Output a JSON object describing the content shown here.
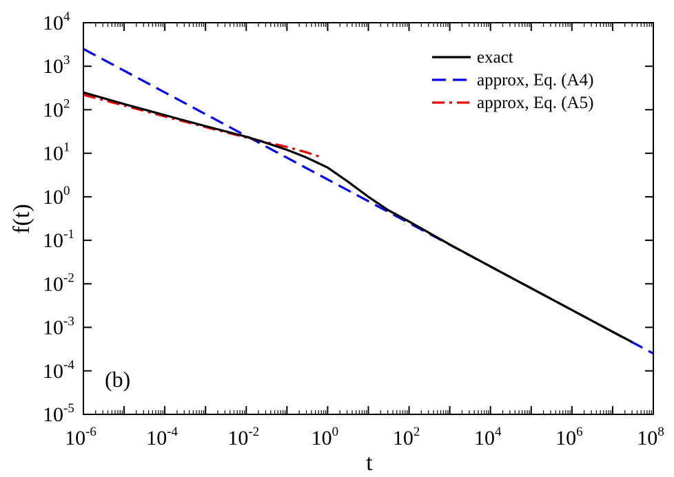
{
  "chart_data": {
    "type": "line",
    "xscale": "log",
    "yscale": "log",
    "xlabel": "t",
    "ylabel": "f(t)",
    "panel_label": "(b)",
    "xlim": [
      1e-06,
      100000000.0
    ],
    "ylim": [
      1e-05,
      10000.0
    ],
    "xticks": [
      {
        "base": "10",
        "exp": "-6"
      },
      {
        "base": "10",
        "exp": "-4"
      },
      {
        "base": "10",
        "exp": "-2"
      },
      {
        "base": "10",
        "exp": "0"
      },
      {
        "base": "10",
        "exp": "2"
      },
      {
        "base": "10",
        "exp": "4"
      },
      {
        "base": "10",
        "exp": "6"
      },
      {
        "base": "10",
        "exp": "8"
      }
    ],
    "yticks": [
      {
        "base": "10",
        "exp": "-5"
      },
      {
        "base": "10",
        "exp": "-4"
      },
      {
        "base": "10",
        "exp": "-3"
      },
      {
        "base": "10",
        "exp": "-2"
      },
      {
        "base": "10",
        "exp": "-1"
      },
      {
        "base": "10",
        "exp": "0"
      },
      {
        "base": "10",
        "exp": "1"
      },
      {
        "base": "10",
        "exp": "2"
      },
      {
        "base": "10",
        "exp": "3"
      },
      {
        "base": "10",
        "exp": "4"
      }
    ],
    "legend_position": "top-right",
    "series": [
      {
        "name": "exact",
        "color": "#000000",
        "style": "solid",
        "x": [
          1e-06,
          1e-05,
          0.0001,
          0.001,
          0.01,
          0.03,
          0.1,
          0.3,
          1,
          3,
          10,
          30,
          100,
          1000.0,
          10000.0,
          100000.0,
          1000000.0,
          10000000.0,
          30000000.0
        ],
        "y": [
          250,
          135,
          75,
          42,
          24,
          17.5,
          12,
          8,
          4.7,
          2.3,
          1.0,
          0.5,
          0.27,
          0.08,
          0.025,
          0.0079,
          0.0025,
          0.00079,
          0.00046
        ]
      },
      {
        "name": "approx, Eq. (A4)",
        "color": "#0000ee",
        "style": "dashed",
        "x": [
          1e-06,
          100000000.0
        ],
        "y": [
          2500,
          0.00025
        ]
      },
      {
        "name": "approx, Eq. (A5)",
        "color": "#ee0000",
        "style": "dashdot",
        "x": [
          1e-06,
          1e-05,
          0.0001,
          0.001,
          0.01,
          0.03,
          0.1,
          0.3,
          0.6
        ],
        "y": [
          220,
          125,
          70,
          40,
          23,
          18,
          14,
          10.5,
          8.5
        ]
      }
    ]
  }
}
